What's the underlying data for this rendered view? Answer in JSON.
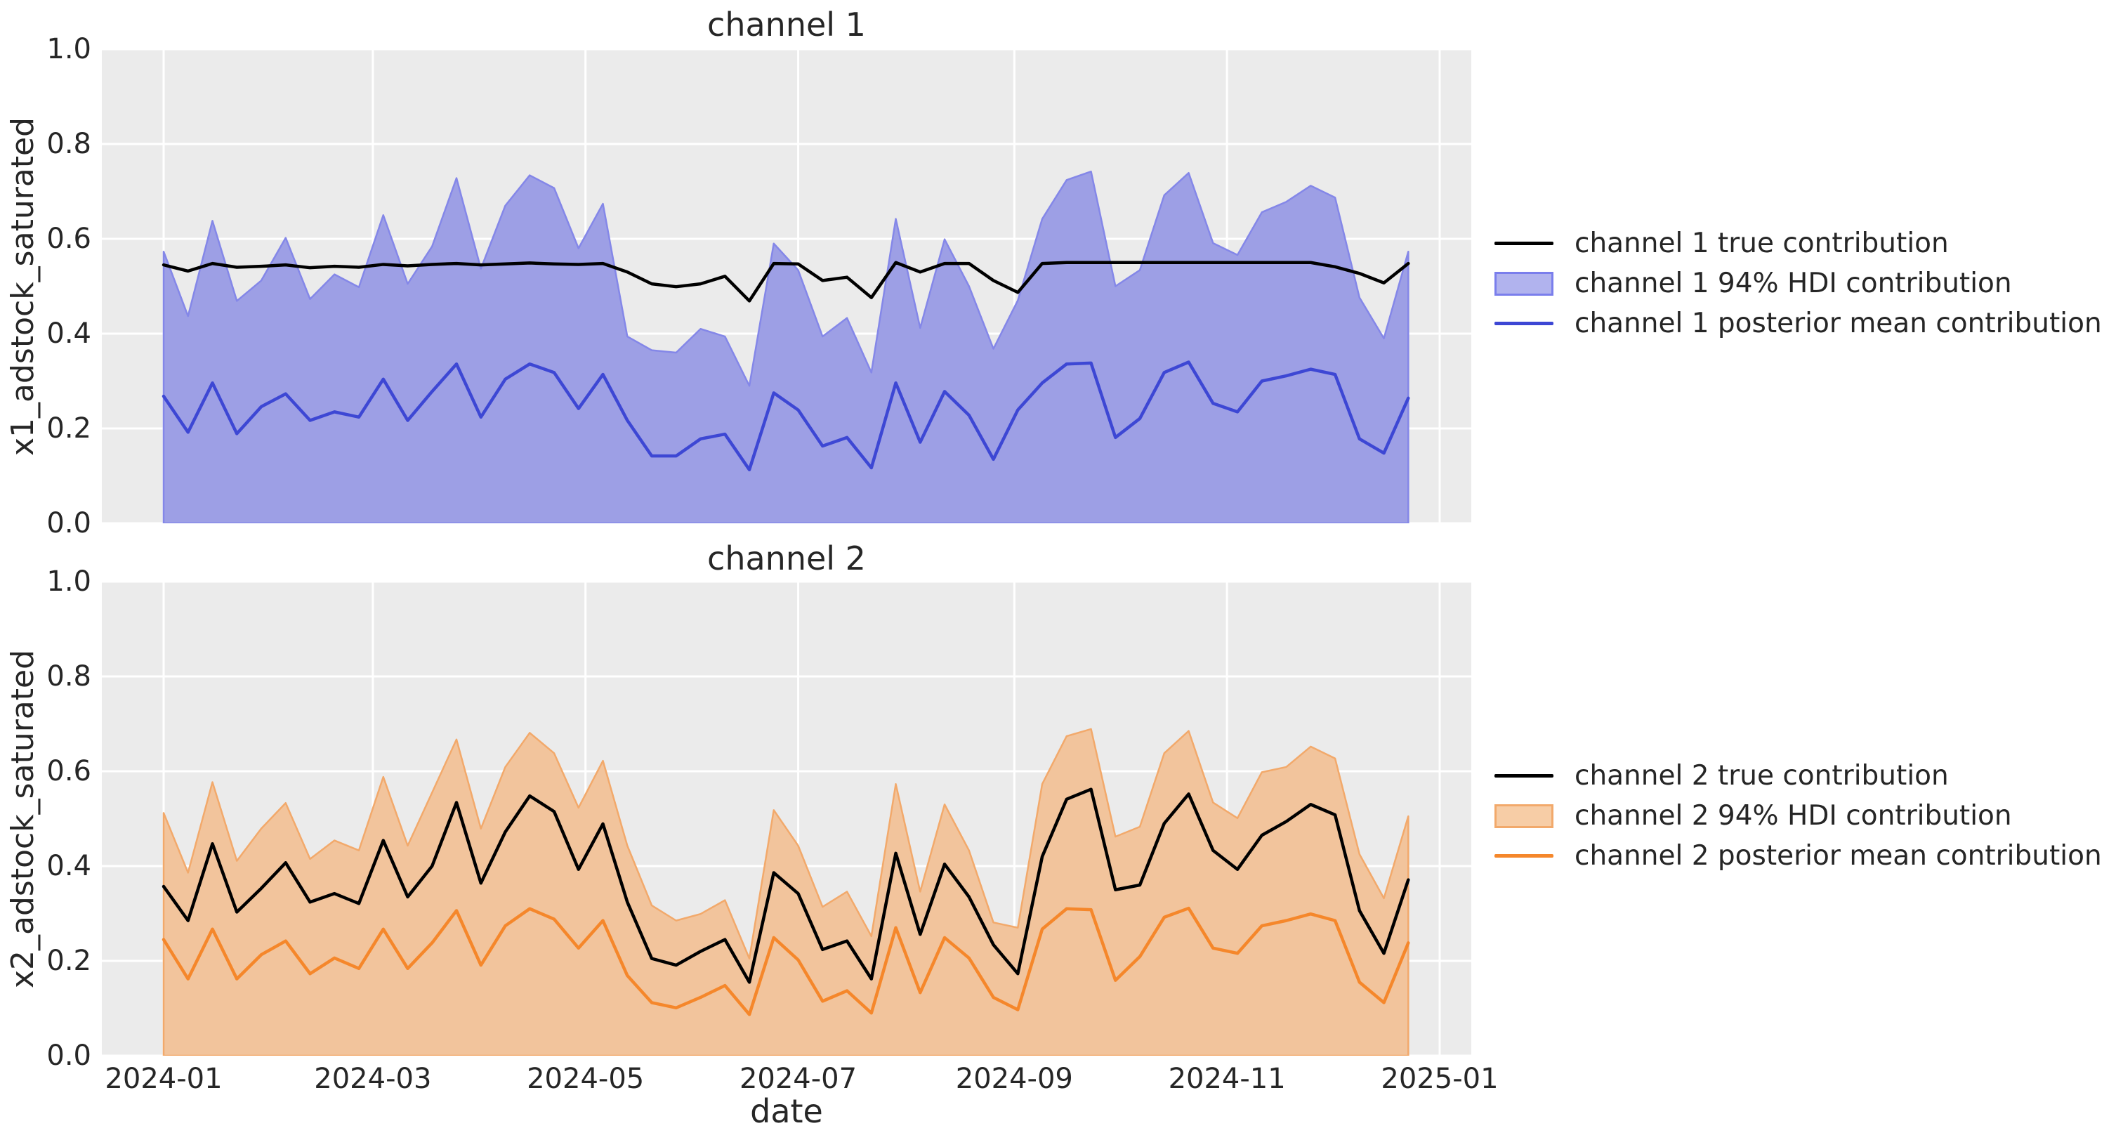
{
  "figure": {
    "xlabel": "date",
    "background": "#ffffff",
    "axes_background": "#ebebeb",
    "grid_color": "#ffffff",
    "text_color": "#262626"
  },
  "chart_data": [
    {
      "type": "area",
      "title": "channel 1",
      "ylabel": "x1_adstock_saturated",
      "xlabel": "date",
      "ylim": [
        0.0,
        1.0
      ],
      "grid": true,
      "legend_position": "right-outside",
      "y_ticks": [
        {
          "label": "0.0",
          "value": 0.0
        },
        {
          "label": "0.2",
          "value": 0.2
        },
        {
          "label": "0.4",
          "value": 0.4
        },
        {
          "label": "0.6",
          "value": 0.6
        },
        {
          "label": "0.8",
          "value": 0.8
        },
        {
          "label": "1.0",
          "value": 1.0
        }
      ],
      "x_ticks": [
        {
          "label": "2024-01",
          "day": 0
        },
        {
          "label": "2024-03",
          "day": 60
        },
        {
          "label": "2024-05",
          "day": 121
        },
        {
          "label": "2024-07",
          "day": 182
        },
        {
          "label": "2024-09",
          "day": 244
        },
        {
          "label": "2024-11",
          "day": 305
        },
        {
          "label": "2025-01",
          "day": 366
        }
      ],
      "dates": [
        "2024-01-01",
        "2024-01-08",
        "2024-01-15",
        "2024-01-22",
        "2024-01-29",
        "2024-02-05",
        "2024-02-12",
        "2024-02-19",
        "2024-02-26",
        "2024-03-04",
        "2024-03-11",
        "2024-03-18",
        "2024-03-25",
        "2024-04-01",
        "2024-04-08",
        "2024-04-15",
        "2024-04-22",
        "2024-04-29",
        "2024-05-06",
        "2024-05-13",
        "2024-05-20",
        "2024-05-27",
        "2024-06-03",
        "2024-06-10",
        "2024-06-17",
        "2024-06-24",
        "2024-07-01",
        "2024-07-08",
        "2024-07-15",
        "2024-07-22",
        "2024-07-29",
        "2024-08-05",
        "2024-08-12",
        "2024-08-19",
        "2024-08-26",
        "2024-09-02",
        "2024-09-09",
        "2024-09-16",
        "2024-09-23",
        "2024-09-30",
        "2024-10-07",
        "2024-10-14",
        "2024-10-21",
        "2024-10-28",
        "2024-11-04",
        "2024-11-11",
        "2024-11-18",
        "2024-11-25",
        "2024-12-02",
        "2024-12-09",
        "2024-12-16",
        "2024-12-23"
      ],
      "colors": {
        "bg": "#ebebeb",
        "grid": "#ffffff"
      },
      "series": [
        {
          "name": "channel 1 true contribution",
          "role": "true",
          "color": "#000000",
          "values": [
            0.545,
            0.532,
            0.548,
            0.54,
            0.542,
            0.545,
            0.539,
            0.542,
            0.54,
            0.546,
            0.543,
            0.546,
            0.548,
            0.545,
            0.547,
            0.549,
            0.547,
            0.546,
            0.548,
            0.53,
            0.505,
            0.499,
            0.505,
            0.521,
            0.469,
            0.548,
            0.547,
            0.512,
            0.519,
            0.476,
            0.55,
            0.53,
            0.548,
            0.548,
            0.512,
            0.487,
            0.548,
            0.55,
            0.55,
            0.55,
            0.55,
            0.55,
            0.55,
            0.55,
            0.55,
            0.55,
            0.55,
            0.55,
            0.541,
            0.527,
            0.507,
            0.548
          ]
        },
        {
          "name": "channel 1 94% HDI contribution",
          "role": "band",
          "fill": "#9d9fe5",
          "edge": "#8487e8",
          "legend_fill": "#b1b3ee",
          "legend_edge": "#7a7eec",
          "lower": 0.0,
          "upper": [
            0.573,
            0.437,
            0.638,
            0.469,
            0.512,
            0.602,
            0.473,
            0.525,
            0.498,
            0.65,
            0.505,
            0.584,
            0.728,
            0.537,
            0.67,
            0.734,
            0.707,
            0.58,
            0.674,
            0.394,
            0.365,
            0.36,
            0.41,
            0.394,
            0.29,
            0.59,
            0.534,
            0.394,
            0.433,
            0.318,
            0.642,
            0.412,
            0.599,
            0.5,
            0.368,
            0.47,
            0.642,
            0.724,
            0.742,
            0.5,
            0.534,
            0.692,
            0.739,
            0.591,
            0.566,
            0.656,
            0.678,
            0.712,
            0.687,
            0.476,
            0.39,
            0.573
          ]
        },
        {
          "name": "channel 1 posterior mean contribution",
          "role": "mean",
          "color": "#3d47d4",
          "values": [
            0.268,
            0.192,
            0.296,
            0.189,
            0.246,
            0.273,
            0.217,
            0.235,
            0.224,
            0.304,
            0.217,
            0.278,
            0.336,
            0.224,
            0.304,
            0.336,
            0.318,
            0.242,
            0.314,
            0.217,
            0.142,
            0.142,
            0.178,
            0.188,
            0.113,
            0.275,
            0.239,
            0.163,
            0.181,
            0.117,
            0.296,
            0.171,
            0.278,
            0.228,
            0.135,
            0.239,
            0.296,
            0.336,
            0.338,
            0.181,
            0.221,
            0.318,
            0.34,
            0.253,
            0.235,
            0.3,
            0.311,
            0.325,
            0.314,
            0.178,
            0.148,
            0.264
          ]
        }
      ]
    },
    {
      "type": "area",
      "title": "channel 2",
      "ylabel": "x2_adstock_saturated",
      "xlabel": "date",
      "ylim": [
        0.0,
        1.0
      ],
      "grid": true,
      "legend_position": "right-outside",
      "y_ticks": [
        {
          "label": "0.0",
          "value": 0.0
        },
        {
          "label": "0.2",
          "value": 0.2
        },
        {
          "label": "0.4",
          "value": 0.4
        },
        {
          "label": "0.6",
          "value": 0.6
        },
        {
          "label": "0.8",
          "value": 0.8
        },
        {
          "label": "1.0",
          "value": 1.0
        }
      ],
      "x_ticks": [
        {
          "label": "2024-01",
          "day": 0
        },
        {
          "label": "2024-03",
          "day": 60
        },
        {
          "label": "2024-05",
          "day": 121
        },
        {
          "label": "2024-07",
          "day": 182
        },
        {
          "label": "2024-09",
          "day": 244
        },
        {
          "label": "2024-11",
          "day": 305
        },
        {
          "label": "2025-01",
          "day": 366
        }
      ],
      "dates": [
        "2024-01-01",
        "2024-01-08",
        "2024-01-15",
        "2024-01-22",
        "2024-01-29",
        "2024-02-05",
        "2024-02-12",
        "2024-02-19",
        "2024-02-26",
        "2024-03-04",
        "2024-03-11",
        "2024-03-18",
        "2024-03-25",
        "2024-04-01",
        "2024-04-08",
        "2024-04-15",
        "2024-04-22",
        "2024-04-29",
        "2024-05-06",
        "2024-05-13",
        "2024-05-20",
        "2024-05-27",
        "2024-06-03",
        "2024-06-10",
        "2024-06-17",
        "2024-06-24",
        "2024-07-01",
        "2024-07-08",
        "2024-07-15",
        "2024-07-22",
        "2024-07-29",
        "2024-08-05",
        "2024-08-12",
        "2024-08-19",
        "2024-08-26",
        "2024-09-02",
        "2024-09-09",
        "2024-09-16",
        "2024-09-23",
        "2024-09-30",
        "2024-10-07",
        "2024-10-14",
        "2024-10-21",
        "2024-10-28",
        "2024-11-04",
        "2024-11-11",
        "2024-11-18",
        "2024-11-25",
        "2024-12-02",
        "2024-12-09",
        "2024-12-16",
        "2024-12-23"
      ],
      "colors": {
        "bg": "#ebebeb",
        "grid": "#ffffff"
      },
      "series": [
        {
          "name": "channel 2 true contribution",
          "role": "true",
          "color": "#000000",
          "values": [
            0.357,
            0.285,
            0.447,
            0.303,
            0.353,
            0.407,
            0.324,
            0.342,
            0.321,
            0.454,
            0.335,
            0.4,
            0.534,
            0.364,
            0.472,
            0.548,
            0.515,
            0.393,
            0.489,
            0.324,
            0.205,
            0.191,
            0.22,
            0.245,
            0.155,
            0.386,
            0.342,
            0.224,
            0.242,
            0.162,
            0.427,
            0.256,
            0.404,
            0.335,
            0.234,
            0.173,
            0.42,
            0.541,
            0.562,
            0.35,
            0.36,
            0.49,
            0.552,
            0.433,
            0.393,
            0.465,
            0.494,
            0.53,
            0.508,
            0.306,
            0.216,
            0.371
          ]
        },
        {
          "name": "channel 2 94% HDI contribution",
          "role": "band",
          "fill": "#f2c49c",
          "edge": "#f2a96b",
          "legend_fill": "#f7cda6",
          "legend_edge": "#f2a96b",
          "lower": 0.0,
          "upper": [
            0.512,
            0.386,
            0.577,
            0.411,
            0.479,
            0.533,
            0.415,
            0.454,
            0.433,
            0.588,
            0.443,
            0.555,
            0.667,
            0.479,
            0.609,
            0.681,
            0.638,
            0.523,
            0.622,
            0.443,
            0.317,
            0.285,
            0.299,
            0.328,
            0.205,
            0.518,
            0.443,
            0.314,
            0.346,
            0.252,
            0.573,
            0.346,
            0.53,
            0.433,
            0.281,
            0.27,
            0.573,
            0.674,
            0.689,
            0.462,
            0.483,
            0.638,
            0.685,
            0.534,
            0.501,
            0.598,
            0.609,
            0.652,
            0.627,
            0.425,
            0.332,
            0.505
          ]
        },
        {
          "name": "channel 2 posterior mean contribution",
          "role": "mean",
          "color": "#f5872b",
          "values": [
            0.245,
            0.162,
            0.267,
            0.162,
            0.213,
            0.242,
            0.173,
            0.206,
            0.184,
            0.267,
            0.184,
            0.238,
            0.306,
            0.191,
            0.274,
            0.31,
            0.288,
            0.227,
            0.285,
            0.169,
            0.112,
            0.101,
            0.123,
            0.148,
            0.087,
            0.249,
            0.202,
            0.115,
            0.137,
            0.09,
            0.27,
            0.133,
            0.249,
            0.206,
            0.123,
            0.097,
            0.267,
            0.31,
            0.308,
            0.159,
            0.209,
            0.292,
            0.311,
            0.227,
            0.216,
            0.274,
            0.285,
            0.299,
            0.285,
            0.155,
            0.112,
            0.238
          ]
        }
      ]
    }
  ]
}
